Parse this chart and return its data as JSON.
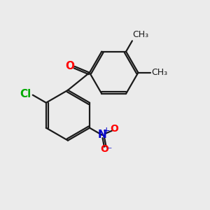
{
  "background_color": "#ebebeb",
  "bond_color": "#1a1a1a",
  "atom_colors": {
    "O": "#ff0000",
    "Cl": "#00aa00",
    "N": "#0000cc",
    "O_nitro": "#ff0000"
  },
  "font_size": 10,
  "lw": 1.6,
  "dbo": 0.09
}
